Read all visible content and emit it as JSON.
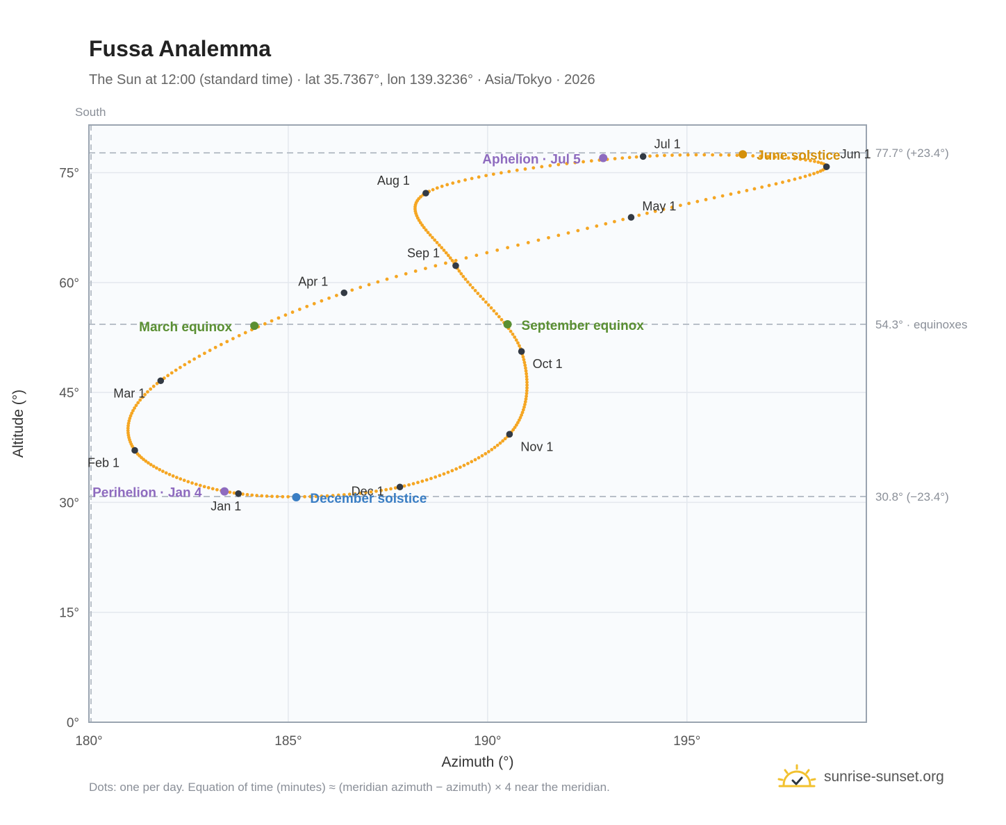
{
  "title": "Fussa Analemma",
  "subtitle": "The Sun at 12:00 (standard time) · lat 35.7367°, lon 139.3236° · Asia/Tokyo · 2026",
  "footer": "Dots: one per day. Equation of time (minutes) ≈ (meridian azimuth − azimuth) × 4 near the meridian.",
  "brand": {
    "name": "sunrise-sunset.org",
    "icon": "sun-logo-icon",
    "color": "#f2c12e"
  },
  "chart_data": {
    "type": "scatter",
    "xlabel": "Azimuth (°)",
    "ylabel": "Altitude (°)",
    "xlim": [
      180,
      199.5
    ],
    "ylim": [
      0,
      81.5
    ],
    "xticks": [
      180,
      185,
      190,
      195
    ],
    "yticks": [
      0,
      15,
      30,
      45,
      60,
      75
    ],
    "grid": true,
    "meridian": {
      "x": 180,
      "label": "South"
    },
    "reference_lines": [
      {
        "y": 77.7,
        "label": "77.7° (+23.4°)"
      },
      {
        "y": 54.3,
        "label": "54.3° · equinoxes"
      },
      {
        "y": 30.8,
        "label": "30.8° (−23.4°)"
      }
    ],
    "colors": {
      "path": "#f5a623",
      "month_marker": "#333a44",
      "equinox": "#5a8f32",
      "june_solstice": "#d4900a",
      "december_solstice": "#3a7ec4",
      "apsis": "#8e6bbf",
      "reference_line": "#b8bfc8",
      "grid": "#e4e8ee",
      "plot_bg": "#f9fbfd"
    },
    "months": [
      {
        "label": "Jan 1",
        "x": 183.75,
        "y": 31.2
      },
      {
        "label": "Feb 1",
        "x": 181.15,
        "y": 37.1
      },
      {
        "label": "Mar 1",
        "x": 181.8,
        "y": 46.6
      },
      {
        "label": "Apr 1",
        "x": 186.4,
        "y": 58.6
      },
      {
        "label": "May 1",
        "x": 193.6,
        "y": 68.9
      },
      {
        "label": "Jun 1",
        "x": 198.5,
        "y": 75.8
      },
      {
        "label": "Jul 1",
        "x": 193.9,
        "y": 77.2
      },
      {
        "label": "Aug 1",
        "x": 188.45,
        "y": 72.2
      },
      {
        "label": "Sep 1",
        "x": 189.2,
        "y": 62.3
      },
      {
        "label": "Oct 1",
        "x": 190.85,
        "y": 50.6
      },
      {
        "label": "Nov 1",
        "x": 190.55,
        "y": 39.3
      },
      {
        "label": "Dec 1",
        "x": 187.8,
        "y": 32.1
      }
    ],
    "events": [
      {
        "label": "March equinox",
        "x": 184.15,
        "y": 54.1,
        "kind": "equinox"
      },
      {
        "label": "June solstice",
        "x": 196.4,
        "y": 77.5,
        "kind": "june_solstice"
      },
      {
        "label": "September equinox",
        "x": 190.5,
        "y": 54.3,
        "kind": "equinox"
      },
      {
        "label": "December solstice",
        "x": 185.2,
        "y": 30.7,
        "kind": "december_solstice"
      },
      {
        "label": "Perihelion · Jan 4",
        "x": 183.4,
        "y": 31.5,
        "kind": "apsis"
      },
      {
        "label": "Aphelion · Jul 5",
        "x": 192.9,
        "y": 77.0,
        "kind": "apsis"
      }
    ]
  }
}
